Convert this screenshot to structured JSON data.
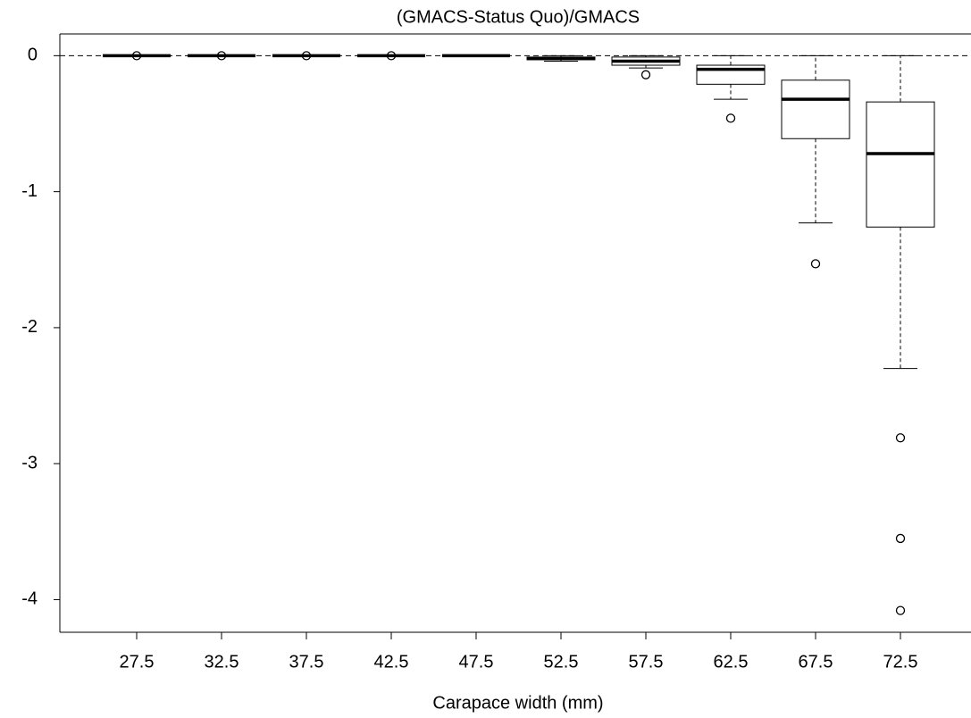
{
  "chart_data": {
    "type": "boxplot",
    "title": "(GMACS-Status Quo)/GMACS",
    "x_label": "Carapace width (mm)",
    "categories": [
      "27.5",
      "32.5",
      "37.5",
      "42.5",
      "47.5",
      "52.5",
      "57.5",
      "62.5",
      "67.5",
      "72.5"
    ],
    "boxes": [
      {
        "whislo": 0,
        "q1": 0,
        "med": 0,
        "q3": 0,
        "whishi": 0,
        "fliers": [
          0
        ]
      },
      {
        "whislo": 0,
        "q1": 0,
        "med": 0,
        "q3": 0,
        "whishi": 0,
        "fliers": [
          0
        ]
      },
      {
        "whislo": 0,
        "q1": 0,
        "med": 0,
        "q3": 0,
        "whishi": 0,
        "fliers": [
          0
        ]
      },
      {
        "whislo": 0,
        "q1": 0,
        "med": 0,
        "q3": 0,
        "whishi": 0,
        "fliers": [
          0
        ]
      },
      {
        "whislo": 0,
        "q1": 0,
        "med": 0,
        "q3": 0,
        "whishi": 0,
        "fliers": []
      },
      {
        "whislo": -0.04,
        "q1": -0.03,
        "med": -0.02,
        "q3": -0.01,
        "whishi": 0,
        "fliers": []
      },
      {
        "whislo": -0.09,
        "q1": -0.07,
        "med": -0.04,
        "q3": -0.01,
        "whishi": 0,
        "fliers": [
          -0.14
        ]
      },
      {
        "whislo": -0.32,
        "q1": -0.21,
        "med": -0.1,
        "q3": -0.07,
        "whishi": 0,
        "fliers": [
          -0.46
        ]
      },
      {
        "whislo": -1.23,
        "q1": -0.61,
        "med": -0.32,
        "q3": -0.18,
        "whishi": 0,
        "fliers": [
          -1.53
        ]
      },
      {
        "whislo": -2.3,
        "q1": -1.26,
        "med": -0.72,
        "q3": -0.34,
        "whishi": 0,
        "fliers": [
          -2.81,
          -3.55,
          -4.08
        ]
      }
    ],
    "reference_line": 0,
    "ylim": [
      -4.24,
      0.16
    ],
    "yticks": [
      -4,
      -3,
      -2,
      -1,
      0
    ],
    "color": "#000000"
  }
}
